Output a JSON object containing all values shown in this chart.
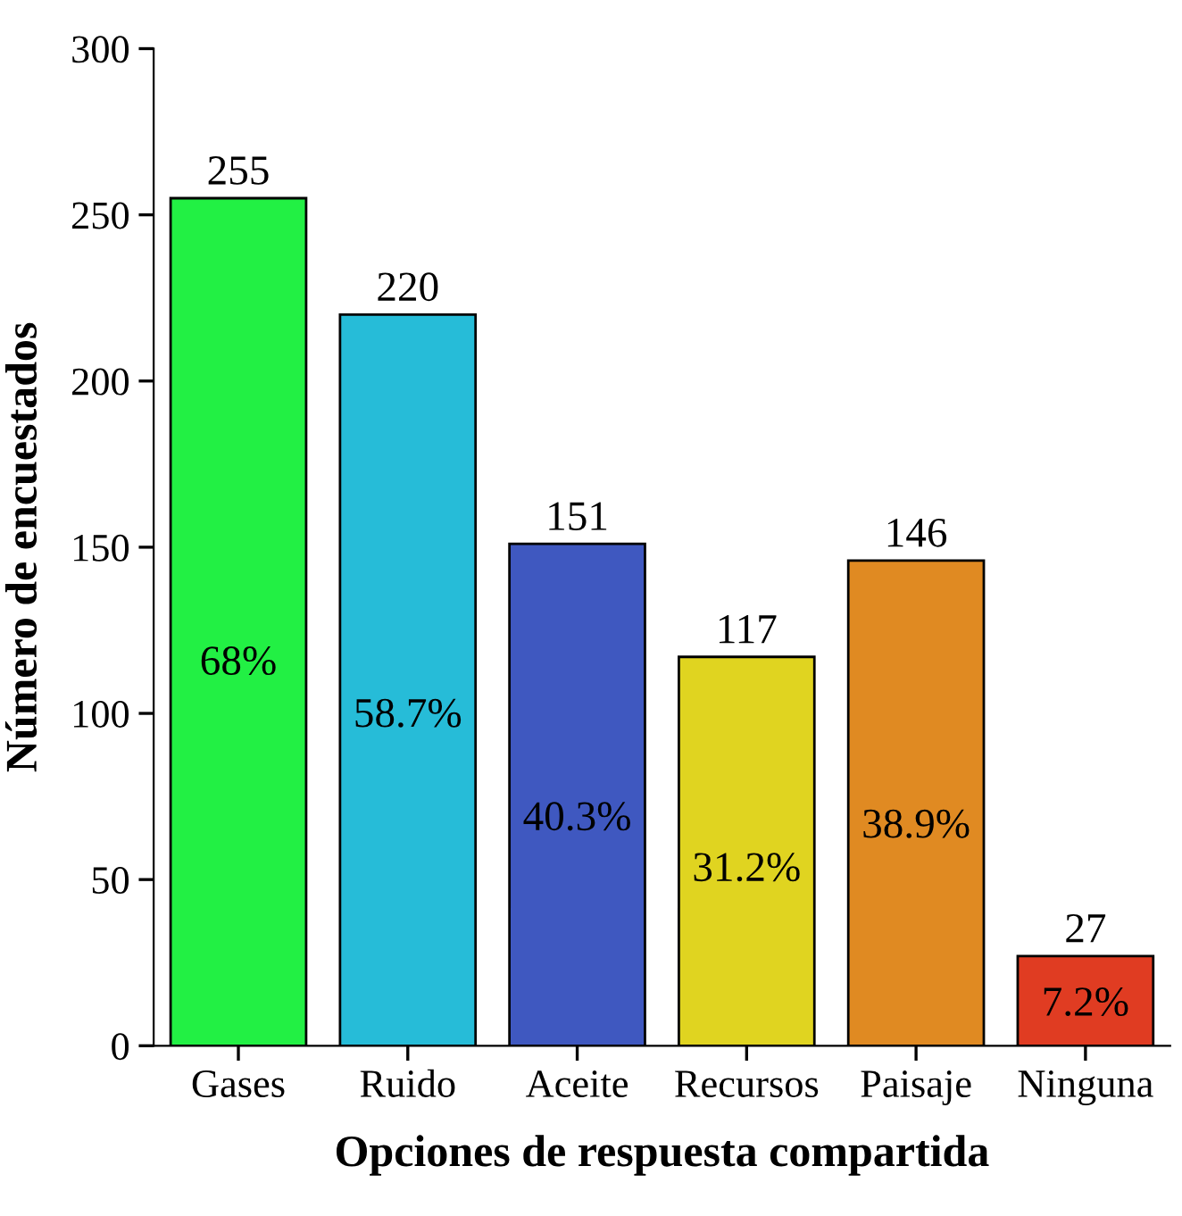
{
  "chart_data": {
    "type": "bar",
    "xlabel": "Opciones de respuesta compartida",
    "ylabel": "Número de encuestados",
    "categories": [
      "Gases",
      "Ruido",
      "Aceite",
      "Recursos",
      "Paisaje",
      "Ninguna"
    ],
    "values": [
      255,
      220,
      151,
      117,
      146,
      27
    ],
    "colors": [
      "#22f044",
      "#26bcd8",
      "#3f58c0",
      "#e0d420",
      "#e08a22",
      "#e03c22"
    ],
    "ylim": [
      0,
      300
    ],
    "yticks": [
      0,
      50,
      100,
      150,
      200,
      250,
      300
    ],
    "grid": false,
    "data_labels": true,
    "annotations": [
      "68%",
      "58.7%",
      "40.3%",
      "31.2%",
      "38.9%",
      "7.2%"
    ]
  }
}
